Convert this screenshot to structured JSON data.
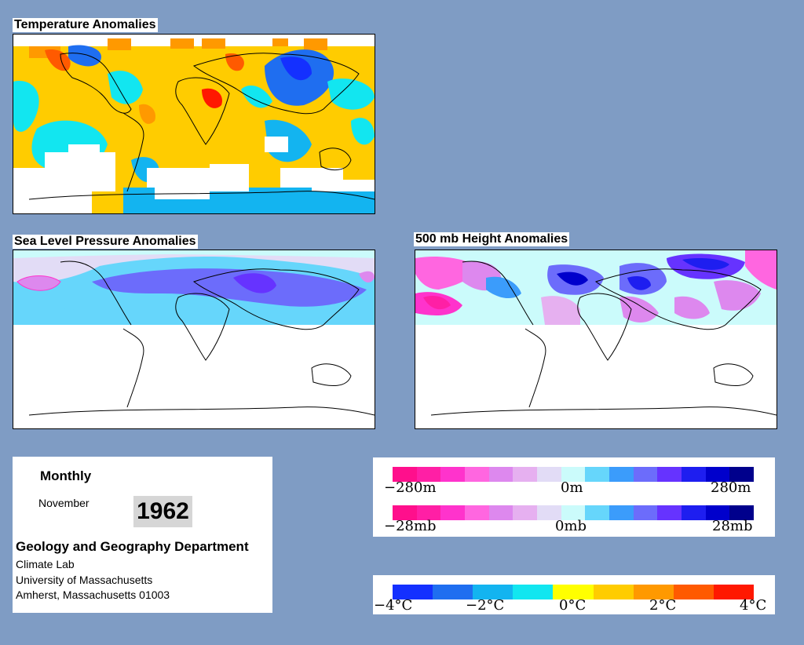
{
  "maps": {
    "temperature": {
      "title": "Temperature Anomalies"
    },
    "slp": {
      "title": "Sea Level Pressure Anomalies"
    },
    "height": {
      "title": "500 mb Height Anomalies"
    }
  },
  "info": {
    "period": "Monthly",
    "month": "November",
    "year": "1962",
    "department": "Geology and Geography Department",
    "address_lines": [
      "Climate Lab",
      "University of Massachusetts",
      "Amherst, Massachusetts 01003"
    ]
  },
  "legends": {
    "height": {
      "min": "−280m",
      "mid": "0m",
      "max": "280m"
    },
    "pressure": {
      "min": "−28mb",
      "mid": "0mb",
      "max": "28mb"
    },
    "temperature": {
      "labels": [
        "−4°C",
        "−2°C",
        "0°C",
        "2°C",
        "4°C"
      ]
    }
  },
  "colors": {
    "background": "#7f9cc4",
    "anomaly_scale": [
      "#ff0f8c",
      "#ff1fa5",
      "#ff33cc",
      "#ff66e0",
      "#dd88ee",
      "#e6b0f0",
      "#e2dcf6",
      "#cbfbfb",
      "#66d6fb",
      "#3b9cfb",
      "#6c6cfb",
      "#6633ff",
      "#1e1ef0",
      "#0000cc",
      "#00008c"
    ],
    "temperature_scale": [
      "#1430ff",
      "#1f6ef0",
      "#13b4f0",
      "#12e6f0",
      "#ffff00",
      "#ffcc00",
      "#ff9900",
      "#ff5a00",
      "#ff1800"
    ]
  }
}
